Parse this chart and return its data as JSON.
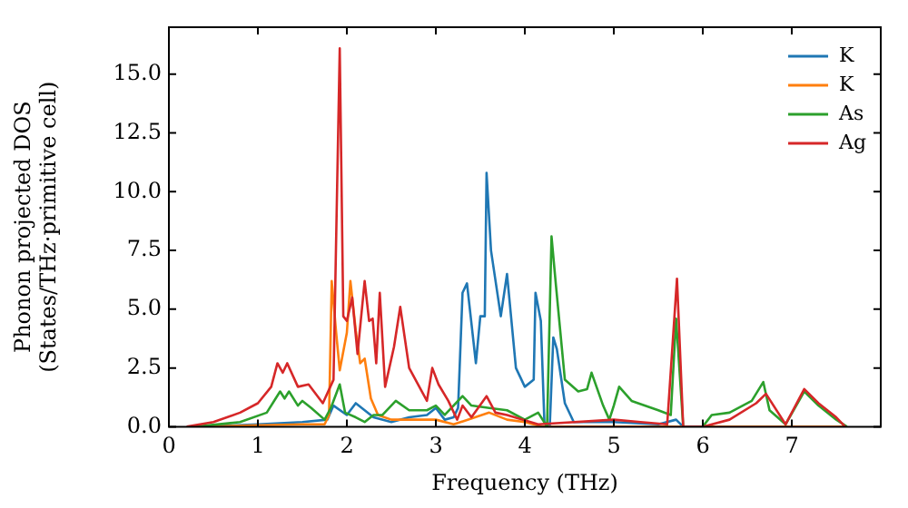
{
  "chart_data": {
    "type": "line",
    "xlabel": "Frequency (THz)",
    "ylabel": "Phonon projected DOS\n(States/THz·primitive cell)",
    "xlim": [
      0,
      8
    ],
    "ylim": [
      0,
      17
    ],
    "xticks": [
      0,
      1,
      2,
      3,
      4,
      5,
      6,
      7
    ],
    "yticks": [
      {
        "value": 0,
        "label": "0.0"
      },
      {
        "value": 2.5,
        "label": "2.5"
      },
      {
        "value": 5,
        "label": "5.0"
      },
      {
        "value": 7.5,
        "label": "7.5"
      },
      {
        "value": 10,
        "label": "10.0"
      },
      {
        "value": 12.5,
        "label": "12.5"
      },
      {
        "value": 15,
        "label": "15.0"
      }
    ],
    "grid": false,
    "legend": "top right",
    "marker": "none",
    "line_style": "solid",
    "series": [
      {
        "name": "K",
        "color": "#1f77b4",
        "x": [
          0.3,
          1.0,
          1.5,
          1.78,
          1.85,
          2.0,
          2.1,
          2.3,
          2.5,
          2.7,
          2.9,
          3.0,
          3.1,
          3.2,
          3.25,
          3.3,
          3.35,
          3.45,
          3.5,
          3.55,
          3.57,
          3.62,
          3.73,
          3.8,
          3.9,
          4.0,
          4.1,
          4.12,
          4.18,
          4.22,
          4.28,
          4.32,
          4.36,
          4.45,
          4.55,
          5.0,
          5.5,
          5.7,
          5.78
        ],
        "values": [
          0,
          0.1,
          0.2,
          0.3,
          0.9,
          0.5,
          1.0,
          0.4,
          0.2,
          0.4,
          0.5,
          0.8,
          0.3,
          0.4,
          0.8,
          5.7,
          6.1,
          2.7,
          4.7,
          4.7,
          10.8,
          7.5,
          4.7,
          6.5,
          2.5,
          1.7,
          2.0,
          5.7,
          4.5,
          0.2,
          0,
          3.8,
          3.3,
          1.0,
          0.2,
          0.2,
          0.1,
          0.3,
          0
        ]
      },
      {
        "name": "K",
        "color": "#ff7f0e",
        "x": [
          0.3,
          1.5,
          1.75,
          1.8,
          1.83,
          1.88,
          1.92,
          2.0,
          2.04,
          2.1,
          2.15,
          2.2,
          2.27,
          2.35,
          2.5,
          3.0,
          3.2,
          3.6,
          3.8,
          4.0,
          4.2,
          7.6
        ],
        "values": [
          0,
          0.1,
          0.1,
          0.5,
          6.2,
          4.0,
          2.4,
          4.0,
          6.2,
          4.1,
          2.7,
          2.9,
          1.2,
          0.5,
          0.3,
          0.3,
          0.1,
          0.6,
          0.3,
          0.2,
          0,
          0
        ]
      },
      {
        "name": "As",
        "color": "#2ca02c",
        "x": [
          0.3,
          0.8,
          1.1,
          1.2,
          1.25,
          1.3,
          1.35,
          1.45,
          1.5,
          1.6,
          1.75,
          1.82,
          1.92,
          1.98,
          2.1,
          2.2,
          2.3,
          2.4,
          2.55,
          2.7,
          2.9,
          3.0,
          3.1,
          3.3,
          3.4,
          3.6,
          3.8,
          4.0,
          4.15,
          4.25,
          4.3,
          4.35,
          4.45,
          4.6,
          4.7,
          4.75,
          4.88,
          4.95,
          5.0,
          5.06,
          5.2,
          5.5,
          5.64,
          5.7,
          5.78,
          6.0,
          6.1,
          6.3,
          6.55,
          6.68,
          6.75,
          6.93,
          7.14,
          7.3,
          7.5,
          7.62
        ],
        "values": [
          0,
          0.2,
          0.6,
          1.2,
          1.5,
          1.2,
          1.5,
          0.9,
          1.1,
          0.8,
          0.3,
          0.8,
          1.8,
          0.6,
          0.4,
          0.2,
          0.5,
          0.5,
          1.1,
          0.7,
          0.7,
          0.9,
          0.5,
          1.3,
          0.9,
          0.8,
          0.7,
          0.3,
          0.6,
          0,
          8.1,
          6.0,
          2.0,
          1.5,
          1.6,
          2.3,
          0.9,
          0.3,
          0.9,
          1.7,
          1.1,
          0.7,
          0.5,
          4.6,
          0,
          0,
          0.5,
          0.6,
          1.1,
          1.9,
          0.7,
          0.1,
          1.5,
          0.9,
          0.3,
          0
        ]
      },
      {
        "name": "Ag",
        "color": "#d62728",
        "x": [
          0.2,
          0.5,
          0.8,
          1.0,
          1.15,
          1.22,
          1.28,
          1.33,
          1.45,
          1.57,
          1.73,
          1.85,
          1.92,
          1.96,
          2.0,
          2.06,
          2.12,
          2.2,
          2.25,
          2.29,
          2.33,
          2.37,
          2.43,
          2.53,
          2.6,
          2.7,
          2.9,
          2.96,
          3.03,
          3.14,
          3.24,
          3.3,
          3.4,
          3.57,
          3.67,
          3.8,
          4.15,
          5.0,
          5.3,
          5.6,
          5.71,
          5.78,
          6.0,
          6.3,
          6.6,
          6.71,
          6.93,
          7.14,
          7.3,
          7.5,
          7.6
        ],
        "values": [
          0,
          0.2,
          0.6,
          1.0,
          1.7,
          2.7,
          2.3,
          2.7,
          1.7,
          1.8,
          1.0,
          2.0,
          16.1,
          4.7,
          4.5,
          5.5,
          3.1,
          6.2,
          4.5,
          4.6,
          2.7,
          5.7,
          1.7,
          3.4,
          5.1,
          2.5,
          1.1,
          2.5,
          1.8,
          1.1,
          0.3,
          0.9,
          0.4,
          1.3,
          0.6,
          0.5,
          0.1,
          0.3,
          0.2,
          0.1,
          6.3,
          0,
          0,
          0.3,
          1.0,
          1.4,
          0.1,
          1.6,
          1.0,
          0.4,
          0
        ]
      }
    ]
  }
}
